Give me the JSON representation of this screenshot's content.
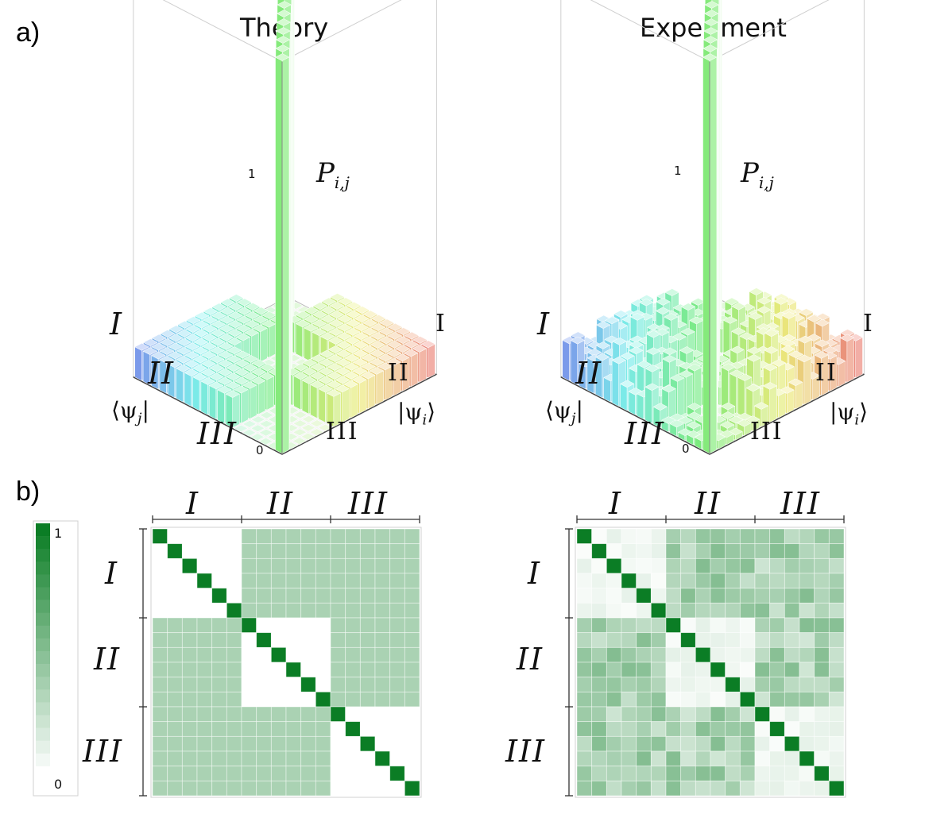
{
  "panel_a": {
    "label": "a)",
    "theory_title": "Theory",
    "experiment_title": "Experiment",
    "z_axis_label": "P",
    "z_axis_sub": "i,j",
    "z_tick_top": "1",
    "z_tick_bottom": "0",
    "left_axis_label": "⟨ψ",
    "left_axis_sub": "j",
    "left_axis_end": "|",
    "right_axis_label": "|ψ",
    "right_axis_sub": "i",
    "right_axis_end": "⟩",
    "left_blocks": [
      "I",
      "II",
      "III"
    ],
    "right_blocks": [
      "I",
      "II",
      "III"
    ]
  },
  "panel_b": {
    "label": "b)",
    "colorbar_max": "1",
    "colorbar_min": "0",
    "blocks": [
      "I",
      "II",
      "III"
    ]
  },
  "chart_data": [
    {
      "type": "heatmap",
      "title": "Theory",
      "size": 18,
      "blocks": [
        "I",
        "II",
        "III"
      ],
      "block_size": 6,
      "diagonal_value": 1.0,
      "inter_block_value": 0.33,
      "intra_block_offdiag_value": 0.0,
      "range": [
        0,
        1
      ]
    },
    {
      "type": "heatmap",
      "title": "Experiment",
      "size": 18,
      "blocks": [
        "I",
        "II",
        "III"
      ],
      "block_size": 6,
      "diagonal_value": 1.0,
      "range": [
        0,
        1
      ]
    }
  ],
  "colors": {
    "heatmap_max": "#0b7d25",
    "heatmap_min": "#ffffff"
  }
}
